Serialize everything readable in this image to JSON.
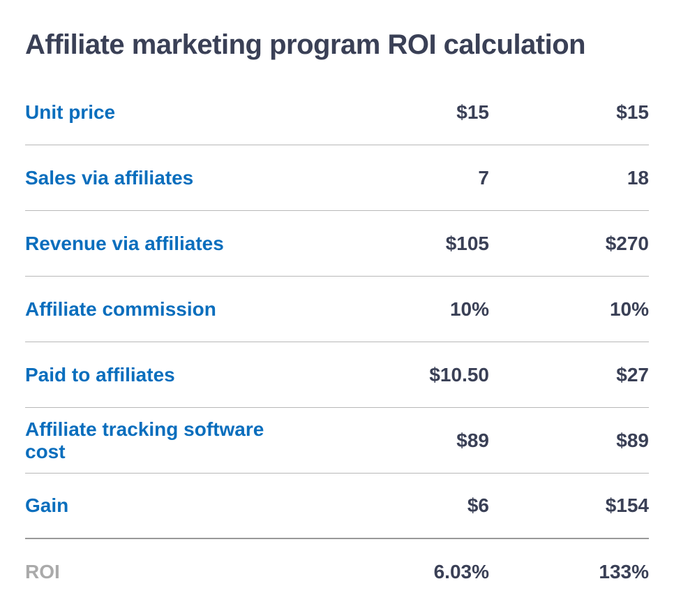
{
  "title": "Affiliate marketing program ROI calculation",
  "rows": [
    {
      "label": "Unit price",
      "values": [
        "$15",
        "$15"
      ]
    },
    {
      "label": "Sales via affiliates",
      "values": [
        "7",
        "18"
      ]
    },
    {
      "label": "Revenue via affiliates",
      "values": [
        "$105",
        "$270"
      ]
    },
    {
      "label": "Affiliate commission",
      "values": [
        "10%",
        "10%"
      ]
    },
    {
      "label": "Paid to affiliates",
      "values": [
        "$10.50",
        "$27"
      ]
    },
    {
      "label": "Affiliate tracking software cost",
      "values": [
        "$89",
        "$89"
      ]
    },
    {
      "label": "Gain",
      "values": [
        "$6",
        "$154"
      ]
    },
    {
      "label": "ROI",
      "values": [
        "6.03%",
        "133%"
      ]
    }
  ],
  "colors": {
    "label": "#0a6ebd",
    "value": "#3a4056",
    "roi_label": "#aaaaaa"
  }
}
